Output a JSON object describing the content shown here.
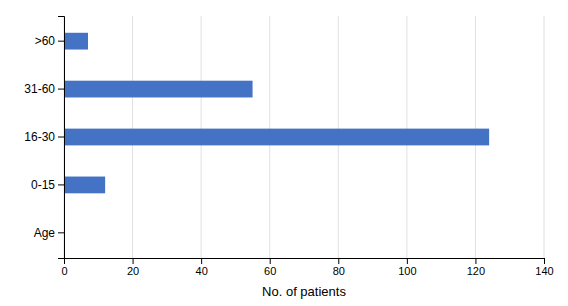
{
  "chart_data": {
    "type": "bar",
    "orientation": "horizontal",
    "categories": [
      "Age",
      "0-15",
      "16-30",
      "31-60",
      ">60"
    ],
    "values": [
      0,
      12,
      124,
      55,
      7
    ],
    "color": "#4472C4",
    "xlabel": "No. of patients",
    "xlim": [
      0,
      140
    ],
    "xticks": [
      0,
      20,
      40,
      60,
      80,
      100,
      120,
      140
    ],
    "grid": true
  }
}
